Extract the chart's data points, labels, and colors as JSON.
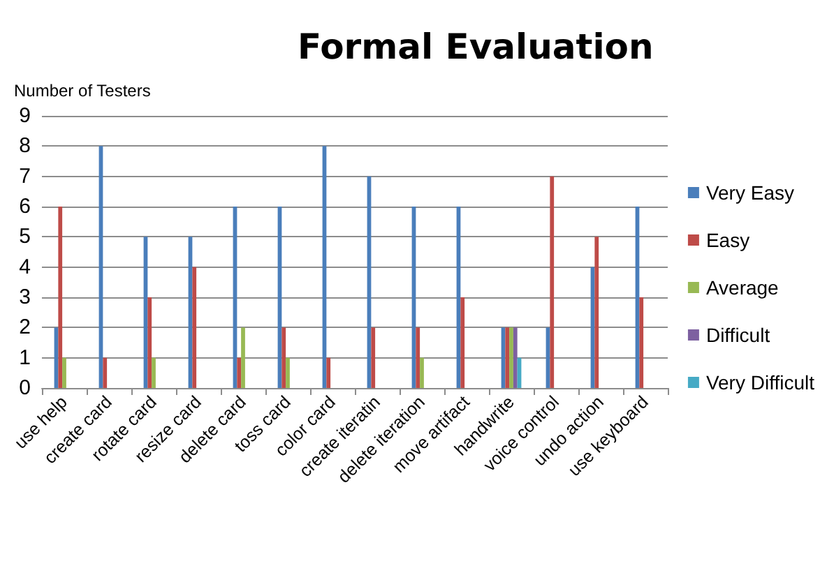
{
  "chart_data": {
    "type": "bar",
    "title": "Formal Evaluation",
    "ylabel": "Number of Testers",
    "categories": [
      "use help",
      "create card",
      "rotate card",
      "resize card",
      "delete card",
      "toss card",
      "color card",
      "create iteratin",
      "delete iteration",
      "move artifact",
      "handwrite",
      "voice control",
      "undo action",
      "use keyboard"
    ],
    "series": [
      {
        "name": "Very Easy",
        "color": "#4a7ebb",
        "values": [
          2,
          8,
          5,
          5,
          6,
          6,
          8,
          7,
          6,
          6,
          2,
          2,
          4,
          6
        ]
      },
      {
        "name": "Easy",
        "color": "#be4b48",
        "values": [
          6,
          1,
          3,
          4,
          1,
          2,
          1,
          2,
          2,
          3,
          2,
          7,
          5,
          3
        ]
      },
      {
        "name": "Average",
        "color": "#98b954",
        "values": [
          1,
          0,
          1,
          0,
          2,
          1,
          0,
          0,
          1,
          0,
          2,
          0,
          0,
          0
        ]
      },
      {
        "name": "Difficult",
        "color": "#7d60a0",
        "values": [
          0,
          0,
          0,
          0,
          0,
          0,
          0,
          0,
          0,
          0,
          2,
          0,
          0,
          0
        ]
      },
      {
        "name": "Very Difficult",
        "color": "#46aac5",
        "values": [
          0,
          0,
          0,
          0,
          0,
          0,
          0,
          0,
          0,
          0,
          1,
          0,
          0,
          0
        ]
      }
    ],
    "ylim": [
      0,
      9
    ],
    "yticks": [
      0,
      1,
      2,
      3,
      4,
      5,
      6,
      7,
      8,
      9
    ],
    "grid": "y",
    "legend": "right"
  }
}
